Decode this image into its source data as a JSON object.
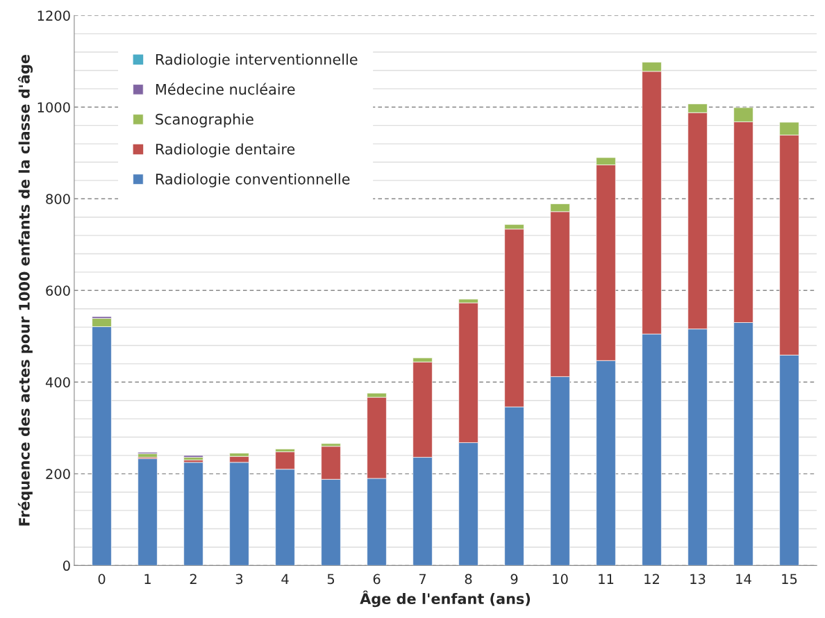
{
  "chart_data": {
    "type": "bar",
    "stacked": true,
    "xlabel": "Âge de l'enfant (ans)",
    "ylabel": "Fréquence des actes pour 1000 enfants de la classe d'âge",
    "categories": [
      "0",
      "1",
      "2",
      "3",
      "4",
      "5",
      "6",
      "7",
      "8",
      "9",
      "10",
      "11",
      "12",
      "13",
      "14",
      "15"
    ],
    "series": [
      {
        "name": "Radiologie conventionnelle",
        "color": "#4f81bd",
        "values": [
          521,
          233,
          225,
          225,
          210,
          188,
          190,
          236,
          268,
          346,
          412,
          447,
          505,
          516,
          530,
          459
        ]
      },
      {
        "name": "Radiologie dentaire",
        "color": "#c0504d",
        "values": [
          0,
          3,
          5,
          13,
          38,
          72,
          177,
          208,
          305,
          388,
          360,
          427,
          573,
          472,
          438,
          480
        ]
      },
      {
        "name": "Scanographie",
        "color": "#9bbb59",
        "values": [
          18,
          8,
          6,
          7,
          6,
          6,
          9,
          9,
          8,
          10,
          17,
          16,
          20,
          19,
          31,
          28
        ]
      },
      {
        "name": "Médecine nucléaire",
        "color": "#8064a2",
        "values": [
          4,
          3,
          4,
          0,
          0,
          0,
          0,
          0,
          0,
          0,
          0,
          0,
          0,
          0,
          0,
          0
        ]
      },
      {
        "name": "Radiologie interventionnelle",
        "color": "#4bacc6",
        "values": [
          0,
          0,
          0,
          0,
          0,
          0,
          0,
          0,
          0,
          0,
          0,
          0,
          0,
          0,
          0,
          0
        ]
      }
    ],
    "ylim": [
      0,
      1200
    ],
    "yticks": [
      0,
      {
        "value": 40,
        "label": null
      },
      {
        "value": 80,
        "label": null
      },
      {
        "value": 120,
        "label": null
      },
      {
        "value": 160,
        "label": null
      },
      200,
      {
        "value": 240,
        "label": null
      },
      {
        "value": 280,
        "label": null
      },
      {
        "value": 320,
        "label": null
      },
      {
        "value": 360,
        "label": null
      },
      400,
      {
        "value": 440,
        "label": null
      },
      {
        "value": 480,
        "label": null
      },
      {
        "value": 520,
        "label": null
      },
      {
        "value": 560,
        "label": null
      },
      600,
      {
        "value": 640,
        "label": null
      },
      {
        "value": 680,
        "label": null
      },
      {
        "value": 720,
        "label": null
      },
      {
        "value": 760,
        "label": null
      },
      800,
      {
        "value": 840,
        "label": null
      },
      {
        "value": 880,
        "label": null
      },
      {
        "value": 920,
        "label": null
      },
      {
        "value": 960,
        "label": null
      },
      1000,
      {
        "value": 1040,
        "label": null
      },
      {
        "value": 1080,
        "label": null
      },
      {
        "value": 1120,
        "label": null
      },
      {
        "value": 1160,
        "label": null
      },
      1200
    ],
    "grid": "y",
    "legend": "top left"
  }
}
